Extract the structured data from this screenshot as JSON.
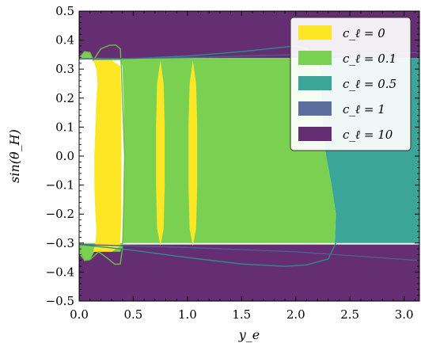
{
  "chart_data": {
    "type": "area",
    "title": "",
    "xlabel": "y_e",
    "ylabel": "sin(θ_H)",
    "xlim": [
      0.0,
      3.14159
    ],
    "ylim": [
      -0.5,
      0.5
    ],
    "x_ticks": [
      0.0,
      0.5,
      1.0,
      1.5,
      2.0,
      2.5,
      3.0
    ],
    "y_ticks": [
      0.5,
      0.4,
      0.3,
      0.2,
      0.1,
      0.0,
      -0.1,
      -0.2,
      -0.3,
      -0.4,
      -0.5
    ],
    "x_tick_labels": [
      "0.0",
      "0.5",
      "1.0",
      "1.5",
      "2.0",
      "2.5",
      "3.0"
    ],
    "y_tick_labels": [
      "0.5",
      "0.4",
      "0.3",
      "0.2",
      "0.1",
      "0.0",
      "−0.1",
      "−0.2",
      "−0.3",
      "−0.4",
      "−0.5"
    ],
    "legend_position": "top-right",
    "series": [
      {
        "name": "c_ℓ = 0",
        "color": "#fde725",
        "regions": [
          [
            [
              0.13,
              0.33
            ],
            [
              0.16,
              0.3
            ],
            [
              0.17,
              0.25
            ],
            [
              0.16,
              0.2
            ],
            [
              0.15,
              0.1
            ],
            [
              0.14,
              0.0
            ],
            [
              0.14,
              -0.1
            ],
            [
              0.15,
              -0.2
            ],
            [
              0.16,
              -0.26
            ],
            [
              0.15,
              -0.3
            ],
            [
              0.13,
              -0.33
            ],
            [
              0.2,
              -0.33
            ],
            [
              0.3,
              -0.33
            ],
            [
              0.38,
              -0.31
            ],
            [
              0.39,
              -0.2
            ],
            [
              0.39,
              0.0
            ],
            [
              0.39,
              0.2
            ],
            [
              0.38,
              0.31
            ],
            [
              0.3,
              0.33
            ],
            [
              0.2,
              0.33
            ]
          ],
          [
            [
              0.75,
              0.33
            ],
            [
              0.78,
              0.25
            ],
            [
              0.79,
              0.1
            ],
            [
              0.79,
              -0.1
            ],
            [
              0.78,
              -0.25
            ],
            [
              0.75,
              -0.31
            ],
            [
              0.72,
              -0.25
            ],
            [
              0.71,
              -0.1
            ],
            [
              0.71,
              0.1
            ],
            [
              0.72,
              0.25
            ]
          ],
          [
            [
              1.05,
              0.33
            ],
            [
              1.08,
              0.25
            ],
            [
              1.09,
              0.1
            ],
            [
              1.09,
              -0.1
            ],
            [
              1.08,
              -0.25
            ],
            [
              1.05,
              -0.31
            ],
            [
              1.02,
              -0.25
            ],
            [
              1.01,
              -0.1
            ],
            [
              1.01,
              0.1
            ],
            [
              1.02,
              0.25
            ]
          ]
        ]
      },
      {
        "name": "c_ℓ = 0.1",
        "color": "#7ad151",
        "regions": [
          [
            [
              0.0,
              0.338
            ],
            [
              0.05,
              0.36
            ],
            [
              0.1,
              0.357
            ],
            [
              0.14,
              0.33
            ],
            [
              0.38,
              0.33
            ],
            [
              0.4,
              0.31
            ],
            [
              0.41,
              0.2
            ],
            [
              0.42,
              0.0
            ],
            [
              0.41,
              -0.2
            ],
            [
              0.4,
              -0.31
            ],
            [
              0.38,
              -0.33
            ],
            [
              0.14,
              -0.33
            ],
            [
              0.1,
              -0.357
            ],
            [
              0.05,
              -0.36
            ],
            [
              0.0,
              -0.338
            ],
            [
              0.0,
              -0.3
            ],
            [
              2.36,
              -0.3
            ],
            [
              2.37,
              -0.2
            ],
            [
              2.33,
              -0.1
            ],
            [
              2.28,
              0.0
            ],
            [
              2.25,
              0.1
            ],
            [
              2.24,
              0.2
            ],
            [
              2.22,
              0.3
            ],
            [
              2.2,
              0.338
            ]
          ]
        ]
      },
      {
        "name": "c_ℓ = 0.5",
        "color": "#3ba59a",
        "regions": [
          [
            [
              2.2,
              0.338
            ],
            [
              2.22,
              0.3
            ],
            [
              2.24,
              0.2
            ],
            [
              2.25,
              0.1
            ],
            [
              2.28,
              0.0
            ],
            [
              2.33,
              -0.1
            ],
            [
              2.37,
              -0.2
            ],
            [
              2.36,
              -0.3
            ],
            [
              3.14159,
              -0.3
            ],
            [
              3.14159,
              0.338
            ]
          ]
        ]
      },
      {
        "name": "c_ℓ = 1",
        "color": "#5c6e9e",
        "regions": []
      },
      {
        "name": "c_ℓ = 10",
        "color": "#652d72",
        "regions": [
          [
            [
              0.0,
              0.5
            ],
            [
              3.14159,
              0.5
            ],
            [
              3.14159,
              0.338
            ],
            [
              0.0,
              0.338
            ]
          ],
          [
            [
              0.0,
              -0.305
            ],
            [
              3.14159,
              -0.305
            ],
            [
              3.14159,
              -0.5
            ],
            [
              0.0,
              -0.5
            ]
          ]
        ]
      }
    ],
    "contours": [
      {
        "series": "c_ℓ = 0.1",
        "color": "#6cbd45",
        "points": [
          [
            0.0,
            0.338
          ],
          [
            0.05,
            0.36
          ],
          [
            0.1,
            0.357
          ],
          [
            0.13,
            0.33
          ],
          [
            0.2,
            0.37
          ],
          [
            0.28,
            0.382
          ],
          [
            0.34,
            0.383
          ],
          [
            0.38,
            0.37
          ],
          [
            0.39,
            0.3
          ],
          [
            0.4,
            0.2
          ],
          [
            0.42,
            0.0
          ],
          [
            0.41,
            -0.2
          ],
          [
            0.4,
            -0.32
          ],
          [
            0.38,
            -0.372
          ],
          [
            0.33,
            -0.373
          ],
          [
            0.26,
            -0.352
          ],
          [
            0.18,
            -0.33
          ],
          [
            0.1,
            -0.357
          ],
          [
            0.05,
            -0.36
          ],
          [
            0.0,
            -0.32
          ]
        ]
      },
      {
        "series": "c_ℓ = 0.5",
        "color": "#2b8e8a",
        "points": [
          [
            0.0,
            0.335
          ],
          [
            0.5,
            0.337
          ],
          [
            1.0,
            0.345
          ],
          [
            1.5,
            0.36
          ],
          [
            1.8,
            0.372
          ],
          [
            2.0,
            0.38
          ],
          [
            2.1,
            0.37
          ],
          [
            2.15,
            0.345
          ],
          [
            2.2,
            0.33
          ]
        ]
      },
      {
        "series": "c_ℓ = 0.5",
        "color": "#2b8e8a",
        "points": [
          [
            2.37,
            -0.3
          ],
          [
            2.3,
            -0.355
          ],
          [
            2.1,
            -0.375
          ],
          [
            1.9,
            -0.38
          ],
          [
            1.5,
            -0.372
          ],
          [
            1.0,
            -0.35
          ],
          [
            0.5,
            -0.325
          ],
          [
            0.0,
            -0.305
          ]
        ]
      },
      {
        "series": "c_ℓ = 1",
        "color": "#4d5f92",
        "points": [
          [
            0.0,
            0.335
          ],
          [
            1.0,
            0.34
          ],
          [
            2.0,
            0.35
          ],
          [
            3.14159,
            0.357
          ]
        ]
      },
      {
        "series": "c_ℓ = 1",
        "color": "#4d5f92",
        "points": [
          [
            0.0,
            -0.305
          ],
          [
            1.0,
            -0.315
          ],
          [
            2.0,
            -0.33
          ],
          [
            3.14159,
            -0.36
          ]
        ]
      }
    ]
  }
}
